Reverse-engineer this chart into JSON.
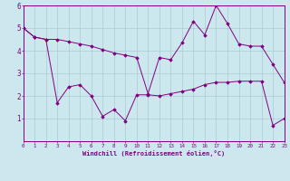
{
  "line1_x": [
    0,
    1,
    2,
    3,
    4,
    5,
    6,
    7,
    8,
    9,
    10,
    11,
    12,
    13,
    14,
    15,
    16,
    17,
    18,
    19,
    20,
    21,
    22,
    23
  ],
  "line1_y": [
    5.0,
    4.6,
    4.5,
    4.5,
    4.4,
    4.3,
    4.2,
    4.05,
    3.9,
    3.8,
    3.7,
    2.1,
    3.7,
    3.6,
    4.35,
    5.3,
    4.7,
    6.0,
    5.2,
    4.3,
    4.2,
    4.2,
    3.4,
    2.6
  ],
  "line2_x": [
    0,
    1,
    2,
    3,
    4,
    5,
    6,
    7,
    8,
    9,
    10,
    11,
    12,
    13,
    14,
    15,
    16,
    17,
    18,
    19,
    20,
    21,
    22,
    23
  ],
  "line2_y": [
    5.0,
    4.6,
    4.5,
    1.7,
    2.4,
    2.5,
    2.0,
    1.1,
    1.4,
    0.9,
    2.05,
    2.05,
    2.0,
    2.1,
    2.2,
    2.3,
    2.5,
    2.6,
    2.6,
    2.65,
    2.65,
    2.65,
    0.7,
    1.0
  ],
  "line_color": "#800080",
  "bg_color": "#cce8ee",
  "grid_color": "#aaccd4",
  "xlabel": "Windchill (Refroidissement éolien,°C)",
  "xlim_min": 0,
  "xlim_max": 23,
  "ylim_min": 0,
  "ylim_max": 6,
  "yticks": [
    1,
    2,
    3,
    4,
    5,
    6
  ],
  "xticks": [
    0,
    1,
    2,
    3,
    4,
    5,
    6,
    7,
    8,
    9,
    10,
    11,
    12,
    13,
    14,
    15,
    16,
    17,
    18,
    19,
    20,
    21,
    22,
    23
  ]
}
